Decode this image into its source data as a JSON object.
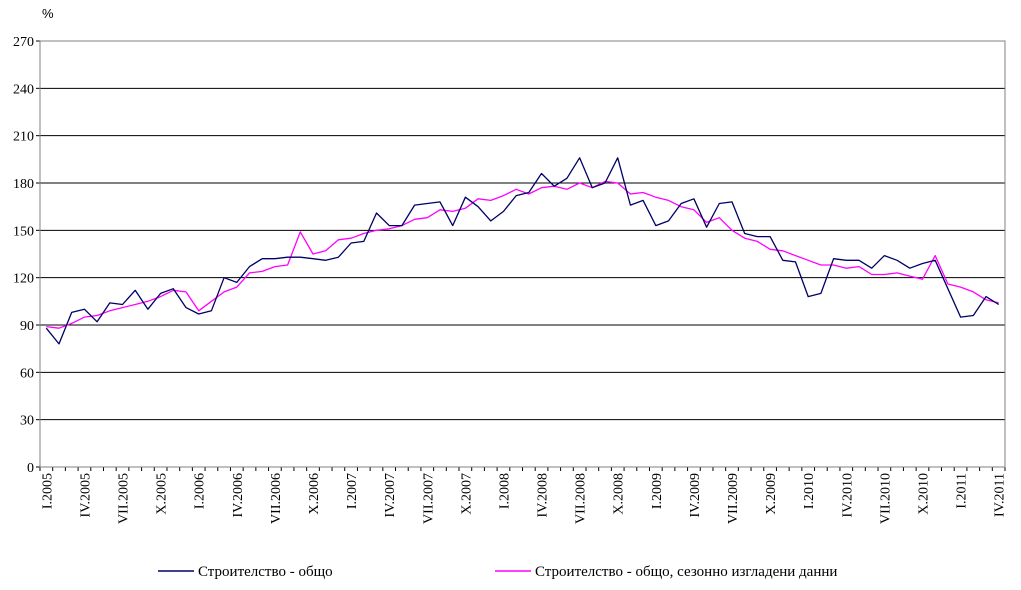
{
  "chart_data": {
    "type": "line",
    "ylabel": "%",
    "ylim": [
      0,
      270
    ],
    "yticks": [
      0,
      30,
      60,
      90,
      120,
      150,
      180,
      210,
      240,
      270
    ],
    "grid": true,
    "legend_position": "bottom",
    "x": [
      "I.2005",
      "II.2005",
      "III.2005",
      "IV.2005",
      "V.2005",
      "VI.2005",
      "VII.2005",
      "VIII.2005",
      "IX.2005",
      "X.2005",
      "XI.2005",
      "XII.2005",
      "I.2006",
      "II.2006",
      "III.2006",
      "IV.2006",
      "V.2006",
      "VI.2006",
      "VII.2006",
      "VIII.2006",
      "IX.2006",
      "X.2006",
      "XI.2006",
      "XII.2006",
      "I.2007",
      "II.2007",
      "III.2007",
      "IV.2007",
      "V.2007",
      "VI.2007",
      "VII.2007",
      "VIII.2007",
      "IX.2007",
      "X.2007",
      "XI.2007",
      "XII.2007",
      "I.2008",
      "II.2008",
      "III.2008",
      "IV.2008",
      "V.2008",
      "VI.2008",
      "VII.2008",
      "VIII.2008",
      "IX.2008",
      "X.2008",
      "XI.2008",
      "XII.2008",
      "I.2009",
      "II.2009",
      "III.2009",
      "IV.2009",
      "V.2009",
      "VI.2009",
      "VII.2009",
      "VIII.2009",
      "IX.2009",
      "X.2009",
      "XI.2009",
      "XII.2009",
      "I.2010",
      "II.2010",
      "III.2010",
      "IV.2010",
      "V.2010",
      "VI.2010",
      "VII.2010",
      "VIII.2010",
      "IX.2010",
      "X.2010",
      "XI.2010",
      "XII.2010",
      "I.2011",
      "II.2011",
      "III.2011",
      "IV.2011"
    ],
    "xtick_labels": [
      "I.2005",
      "IV.2005",
      "VII.2005",
      "X.2005",
      "I.2006",
      "IV.2006",
      "VII.2006",
      "X.2006",
      "I.2007",
      "IV.2007",
      "VII.2007",
      "X.2007",
      "I.2008",
      "IV.2008",
      "VII.2008",
      "X.2008",
      "I.2009",
      "IV.2009",
      "VII.2009",
      "X.2009",
      "I.2010",
      "IV.2010",
      "VII.2010",
      "X.2010",
      "I.2011",
      "IV.2011"
    ],
    "series": [
      {
        "name": "Строителство - общо",
        "color": "#000066",
        "values": [
          88,
          78,
          98,
          100,
          92,
          104,
          103,
          112,
          100,
          110,
          113,
          101,
          97,
          99,
          120,
          117,
          127,
          132,
          132,
          133,
          133,
          132,
          131,
          133,
          142,
          143,
          161,
          153,
          153,
          166,
          167,
          168,
          153,
          171,
          165,
          156,
          162,
          172,
          174,
          186,
          178,
          183,
          196,
          177,
          180,
          196,
          166,
          169,
          153,
          156,
          167,
          170,
          152,
          167,
          168,
          148,
          146,
          146,
          131,
          130,
          108,
          110,
          132,
          131,
          131,
          126,
          134,
          131,
          126,
          129,
          131,
          113,
          95,
          96,
          108,
          103
        ]
      },
      {
        "name": "Строителство - общо, сезонно изгладени данни",
        "color": "#ff00ff",
        "values": [
          89,
          88,
          91,
          95,
          96,
          99,
          101,
          103,
          105,
          108,
          112,
          111,
          99,
          105,
          111,
          114,
          123,
          124,
          127,
          128,
          149,
          135,
          137,
          144,
          145,
          148,
          150,
          151,
          153,
          157,
          158,
          163,
          162,
          164,
          170,
          169,
          172,
          176,
          173,
          177,
          178,
          176,
          180,
          177,
          181,
          180,
          173,
          174,
          171,
          169,
          165,
          163,
          155,
          158,
          150,
          145,
          143,
          138,
          137,
          134,
          131,
          128,
          128,
          126,
          127,
          122,
          122,
          123,
          121,
          119,
          134,
          116,
          114,
          111,
          106,
          104
        ]
      }
    ]
  }
}
